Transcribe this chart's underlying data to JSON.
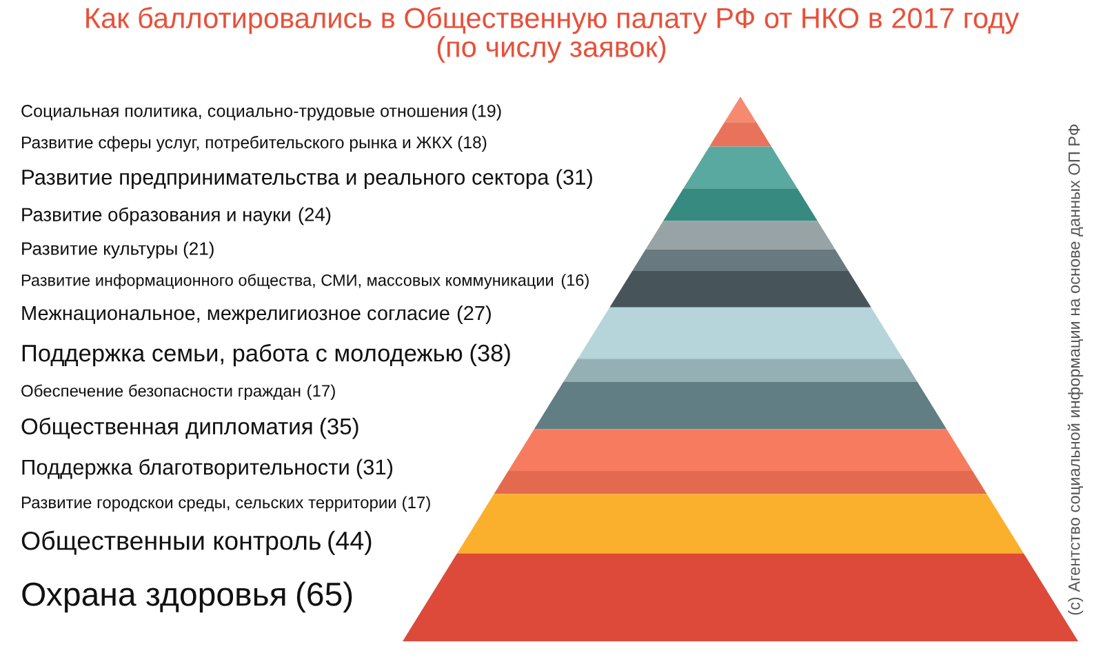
{
  "chart_data": {
    "type": "other",
    "title": "Как баллотировались в Общественную палату РФ от НКО в 2017 году\n(по числу заявок)",
    "categories": [
      "Социальная политика, социально-трудовые отношения",
      "Развитие сферы услуг, потребительского рынка и ЖКХ",
      "Развитие предпринимательства и реального сектора",
      "Развитие образования и науки",
      "Развитие культуры",
      "Развитие информационного общества, СМИ, массовых коммуникации",
      "Межнациональное, межрелигиозное согласие",
      "Поддержка семьи, работа с молодежью",
      "Обеспечение безопасности граждан",
      "Общественная дипломатия",
      "Поддержка благотворительности",
      "Развитие городскои среды, сельских территории",
      "Общественныи контроль",
      "Охрана здоровья"
    ],
    "values": [
      19,
      18,
      31,
      24,
      21,
      16,
      27,
      38,
      17,
      35,
      31,
      17,
      44,
      65
    ],
    "value_labels": [
      "(19)",
      "(18)",
      "(31)",
      "(24)",
      "(21)",
      "(16)",
      "(27)",
      "(38)",
      "(17)",
      "(35)",
      "(31)",
      "(17)",
      "(44)",
      "(65)"
    ],
    "colors": [
      "#f58a70",
      "#e8735a",
      "#5aa9a0",
      "#378a7f",
      "#97a3a5",
      "#687a7f",
      "#47555b",
      "#b5d5da",
      "#94b0b5",
      "#607e83",
      "#f77c5f",
      "#e36a4e",
      "#fbb02d",
      "#dd4a39"
    ],
    "annotations": [
      "(c) Агентство социальной информации на основе данных ОП РФ"
    ]
  }
}
